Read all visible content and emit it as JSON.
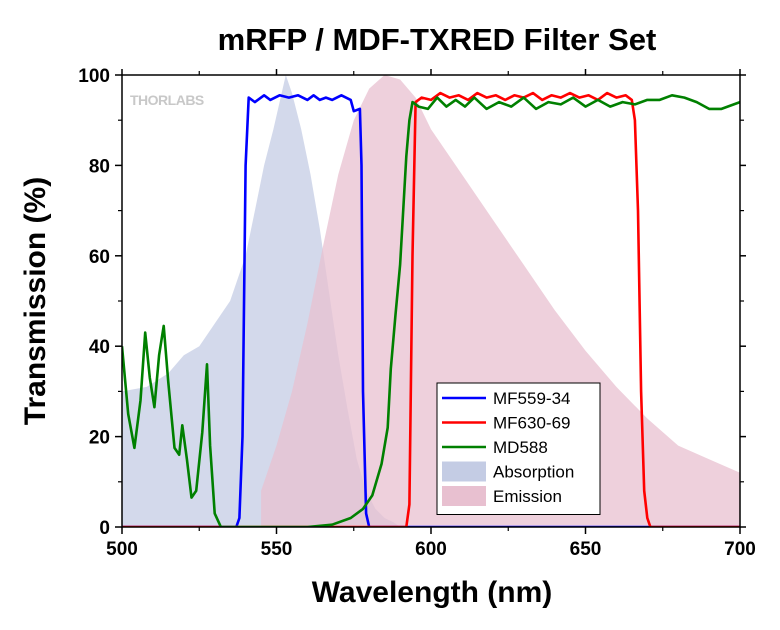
{
  "chart_data": {
    "type": "line",
    "title": "mRFP / MDF-TXRED Filter Set",
    "xlabel": "Wavelength (nm)",
    "ylabel": "Transmission (%)",
    "xlim": [
      500,
      700
    ],
    "ylim": [
      0,
      100
    ],
    "xticks": [
      500,
      550,
      600,
      650,
      700
    ],
    "yticks": [
      0,
      20,
      40,
      60,
      80,
      100
    ],
    "watermark": "THORLABS",
    "grid": false,
    "legend_position": "bottom-right",
    "series": [
      {
        "name": "MF559-34",
        "kind": "line",
        "color": "#0000ff",
        "points": [
          [
            500,
            0
          ],
          [
            537,
            0
          ],
          [
            538,
            2
          ],
          [
            539,
            20
          ],
          [
            540,
            80
          ],
          [
            541,
            95
          ],
          [
            543,
            94
          ],
          [
            546,
            95.5
          ],
          [
            548,
            94.5
          ],
          [
            551,
            95.5
          ],
          [
            554,
            95
          ],
          [
            557,
            95.5
          ],
          [
            560,
            94.5
          ],
          [
            562,
            95.5
          ],
          [
            564,
            94.5
          ],
          [
            566,
            95
          ],
          [
            568,
            94.5
          ],
          [
            571,
            95.5
          ],
          [
            574,
            94.5
          ],
          [
            575,
            92
          ],
          [
            577,
            92.5
          ],
          [
            577.5,
            80
          ],
          [
            578,
            30
          ],
          [
            579,
            3
          ],
          [
            580,
            0
          ],
          [
            700,
            0
          ]
        ]
      },
      {
        "name": "MF630-69",
        "kind": "line",
        "color": "#ff0000",
        "points": [
          [
            500,
            0
          ],
          [
            592,
            0
          ],
          [
            593,
            5
          ],
          [
            594,
            60
          ],
          [
            595,
            94
          ],
          [
            597,
            95
          ],
          [
            600,
            94.5
          ],
          [
            603,
            96
          ],
          [
            606,
            95
          ],
          [
            609,
            95.5
          ],
          [
            612,
            94.5
          ],
          [
            615,
            96
          ],
          [
            618,
            95
          ],
          [
            621,
            95.5
          ],
          [
            624,
            94.5
          ],
          [
            627,
            95.5
          ],
          [
            630,
            95
          ],
          [
            633,
            96
          ],
          [
            636,
            94.5
          ],
          [
            639,
            95.5
          ],
          [
            642,
            95
          ],
          [
            645,
            96
          ],
          [
            648,
            95
          ],
          [
            651,
            95.5
          ],
          [
            654,
            94.5
          ],
          [
            657,
            96
          ],
          [
            660,
            95
          ],
          [
            663,
            95.5
          ],
          [
            665,
            94.5
          ],
          [
            666,
            90
          ],
          [
            667,
            70
          ],
          [
            668,
            30
          ],
          [
            669,
            8
          ],
          [
            670,
            2
          ],
          [
            671,
            0
          ],
          [
            700,
            0
          ]
        ]
      },
      {
        "name": "MD588",
        "kind": "line",
        "color": "#008000",
        "points": [
          [
            500,
            40
          ],
          [
            502,
            25
          ],
          [
            504,
            17.5
          ],
          [
            506,
            28
          ],
          [
            507.5,
            43
          ],
          [
            509,
            33
          ],
          [
            510.5,
            26.5
          ],
          [
            512,
            38
          ],
          [
            513.5,
            44.5
          ],
          [
            515,
            32
          ],
          [
            517,
            17.5
          ],
          [
            518.5,
            16
          ],
          [
            519.5,
            22.5
          ],
          [
            521,
            15
          ],
          [
            522.5,
            6.5
          ],
          [
            524,
            8
          ],
          [
            526,
            21
          ],
          [
            527.5,
            36
          ],
          [
            528.5,
            18
          ],
          [
            530,
            3
          ],
          [
            532,
            0
          ],
          [
            533,
            0
          ],
          [
            560,
            0
          ],
          [
            568,
            0.5
          ],
          [
            574,
            2
          ],
          [
            578,
            4
          ],
          [
            581,
            7
          ],
          [
            584,
            14
          ],
          [
            586,
            22
          ],
          [
            587,
            35
          ],
          [
            588.5,
            47
          ],
          [
            590,
            58
          ],
          [
            591,
            70
          ],
          [
            592,
            82
          ],
          [
            593,
            90
          ],
          [
            594,
            94
          ],
          [
            596,
            93
          ],
          [
            599,
            92.5
          ],
          [
            602,
            95
          ],
          [
            605,
            93
          ],
          [
            608,
            94.5
          ],
          [
            611,
            93
          ],
          [
            614,
            95
          ],
          [
            618,
            92.5
          ],
          [
            622,
            94
          ],
          [
            626,
            93
          ],
          [
            630,
            95
          ],
          [
            634,
            92.5
          ],
          [
            638,
            94
          ],
          [
            642,
            93.5
          ],
          [
            646,
            95
          ],
          [
            650,
            93
          ],
          [
            654,
            94.5
          ],
          [
            658,
            93
          ],
          [
            662,
            94
          ],
          [
            666,
            93.5
          ],
          [
            670,
            94.5
          ],
          [
            674,
            94.5
          ],
          [
            678,
            95.5
          ],
          [
            682,
            95
          ],
          [
            686,
            94
          ],
          [
            690,
            92.5
          ],
          [
            694,
            92.5
          ],
          [
            698,
            93.5
          ],
          [
            700,
            94
          ]
        ]
      },
      {
        "name": "Absorption",
        "kind": "area",
        "color": "#c4cce4",
        "points": [
          [
            500,
            0
          ],
          [
            500,
            30
          ],
          [
            508,
            31
          ],
          [
            515,
            34
          ],
          [
            520,
            38
          ],
          [
            525,
            40
          ],
          [
            530,
            45
          ],
          [
            535,
            50
          ],
          [
            540,
            60
          ],
          [
            543,
            70
          ],
          [
            546,
            80
          ],
          [
            549,
            88
          ],
          [
            551,
            94
          ],
          [
            553,
            100
          ],
          [
            555,
            96
          ],
          [
            558,
            88
          ],
          [
            561,
            78
          ],
          [
            564,
            66
          ],
          [
            567,
            52
          ],
          [
            570,
            38
          ],
          [
            573,
            26
          ],
          [
            576,
            15
          ],
          [
            579,
            8
          ],
          [
            582,
            4
          ],
          [
            585,
            2
          ],
          [
            588,
            1
          ],
          [
            590,
            0
          ],
          [
            590,
            0
          ]
        ]
      },
      {
        "name": "Emission",
        "kind": "area",
        "color": "#e8c0d0",
        "points": [
          [
            545,
            0
          ],
          [
            545,
            8
          ],
          [
            550,
            18
          ],
          [
            555,
            30
          ],
          [
            560,
            45
          ],
          [
            565,
            62
          ],
          [
            570,
            78
          ],
          [
            575,
            90
          ],
          [
            580,
            97
          ],
          [
            585,
            100
          ],
          [
            590,
            99
          ],
          [
            595,
            95
          ],
          [
            600,
            88
          ],
          [
            610,
            78
          ],
          [
            620,
            68
          ],
          [
            630,
            58
          ],
          [
            640,
            48
          ],
          [
            650,
            39
          ],
          [
            660,
            31
          ],
          [
            670,
            24
          ],
          [
            680,
            18
          ],
          [
            690,
            15
          ],
          [
            700,
            12
          ],
          [
            700,
            0
          ]
        ]
      }
    ]
  }
}
